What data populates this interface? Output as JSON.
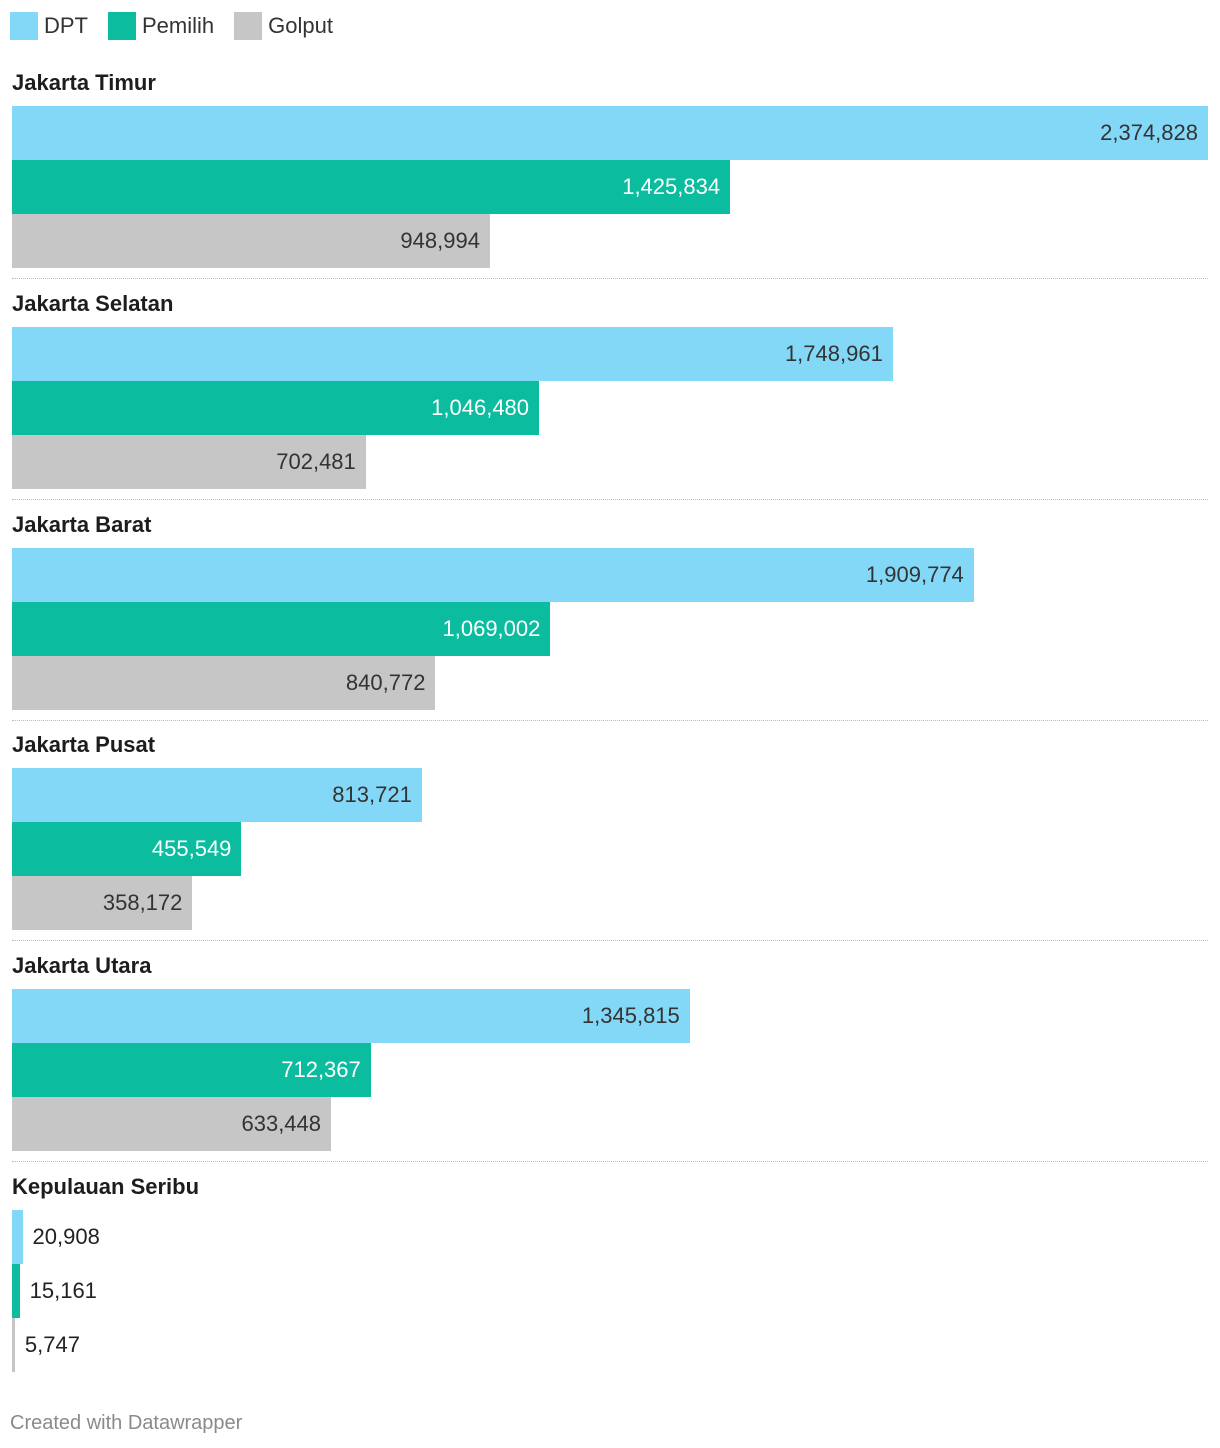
{
  "colors": {
    "DPT": "#84d8f7",
    "Pemilih": "#0bbc9f",
    "Golput": "#c6c6c6"
  },
  "chart_data": {
    "type": "bar",
    "orientation": "horizontal",
    "grouped": true,
    "legend": "top-left",
    "series_names": [
      "DPT",
      "Pemilih",
      "Golput"
    ],
    "groups": [
      {
        "name": "Jakarta Timur",
        "values": [
          2374828,
          1425834,
          948994
        ]
      },
      {
        "name": "Jakarta Selatan",
        "values": [
          1748961,
          1046480,
          702481
        ]
      },
      {
        "name": "Jakarta Barat",
        "values": [
          1909774,
          1069002,
          840772
        ]
      },
      {
        "name": "Jakarta Pusat",
        "values": [
          813721,
          455549,
          358172
        ]
      },
      {
        "name": "Jakarta Utara",
        "values": [
          1345815,
          712367,
          633448
        ]
      },
      {
        "name": "Kepulauan Seribu",
        "values": [
          20908,
          15161,
          5747
        ]
      }
    ],
    "xlim": [
      0,
      2374828
    ],
    "grid": false
  },
  "footer": "Created with Datawrapper"
}
